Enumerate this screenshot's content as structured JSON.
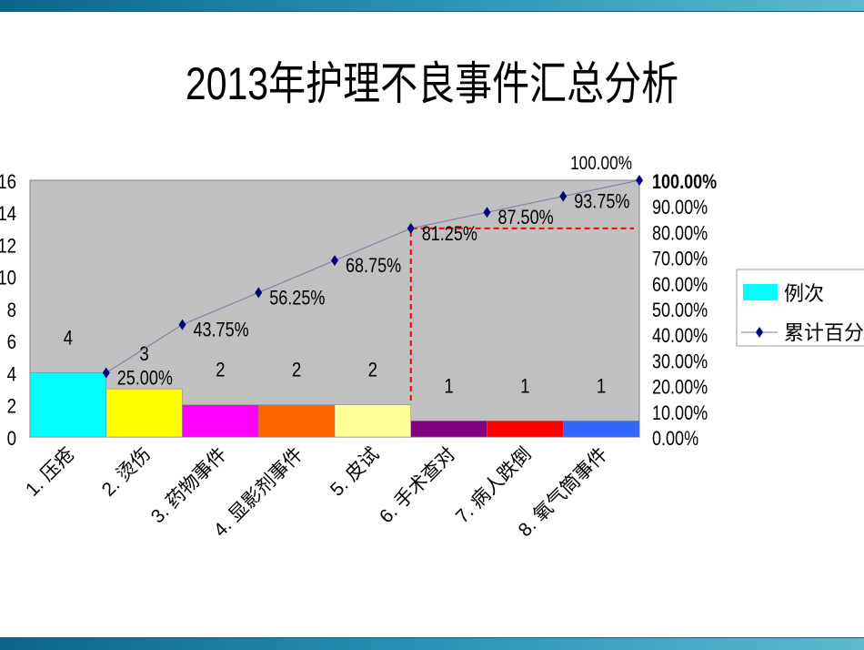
{
  "title": "2013年护理不良事件汇总分析",
  "chart_data": {
    "type": "bar",
    "title": "2013年护理不良事件汇总分析",
    "categories": [
      "1. 压疮",
      "2. 烫伤",
      "3.  药物事件",
      "4.  显影剂事件",
      "5. 皮试",
      "6. 手术查对",
      "7. 病人跌倒",
      "8. 氧气筒事件"
    ],
    "series": [
      {
        "name": "例次",
        "type": "bar",
        "values": [
          4,
          3,
          2,
          2,
          2,
          1,
          1,
          1
        ],
        "colors": [
          "#00FFFF",
          "#FFFF00",
          "#FF00FF",
          "#FF6600",
          "#FFFF99",
          "#800080",
          "#FF0000",
          "#3366FF"
        ]
      },
      {
        "name": "累计百分比",
        "type": "line",
        "axis": "right",
        "values": [
          25.0,
          43.75,
          56.25,
          68.75,
          81.25,
          87.5,
          93.75,
          100.0
        ],
        "labels": [
          "25.00%",
          "43.75%",
          "56.25%",
          "68.75%",
          "81.25%",
          "87.50%",
          "93.75%",
          "100.00%"
        ],
        "color": "#000080"
      }
    ],
    "ylim": [
      0,
      16
    ],
    "yticks": [
      "0",
      "2",
      "4",
      "6",
      "8",
      "10",
      "12",
      "14",
      "16"
    ],
    "y2lim": [
      0,
      100
    ],
    "y2ticks": [
      "0.00%",
      "10.00%",
      "20.00%",
      "30.00%",
      "40.00%",
      "50.00%",
      "60.00%",
      "70.00%",
      "80.00%",
      "90.00%",
      "100.00%"
    ],
    "reference_line": {
      "value_percent": 81.25,
      "color": "#FF0000",
      "style": "dashed"
    },
    "plot_background": "#C0C0C0",
    "grid": false,
    "legend": "right"
  }
}
